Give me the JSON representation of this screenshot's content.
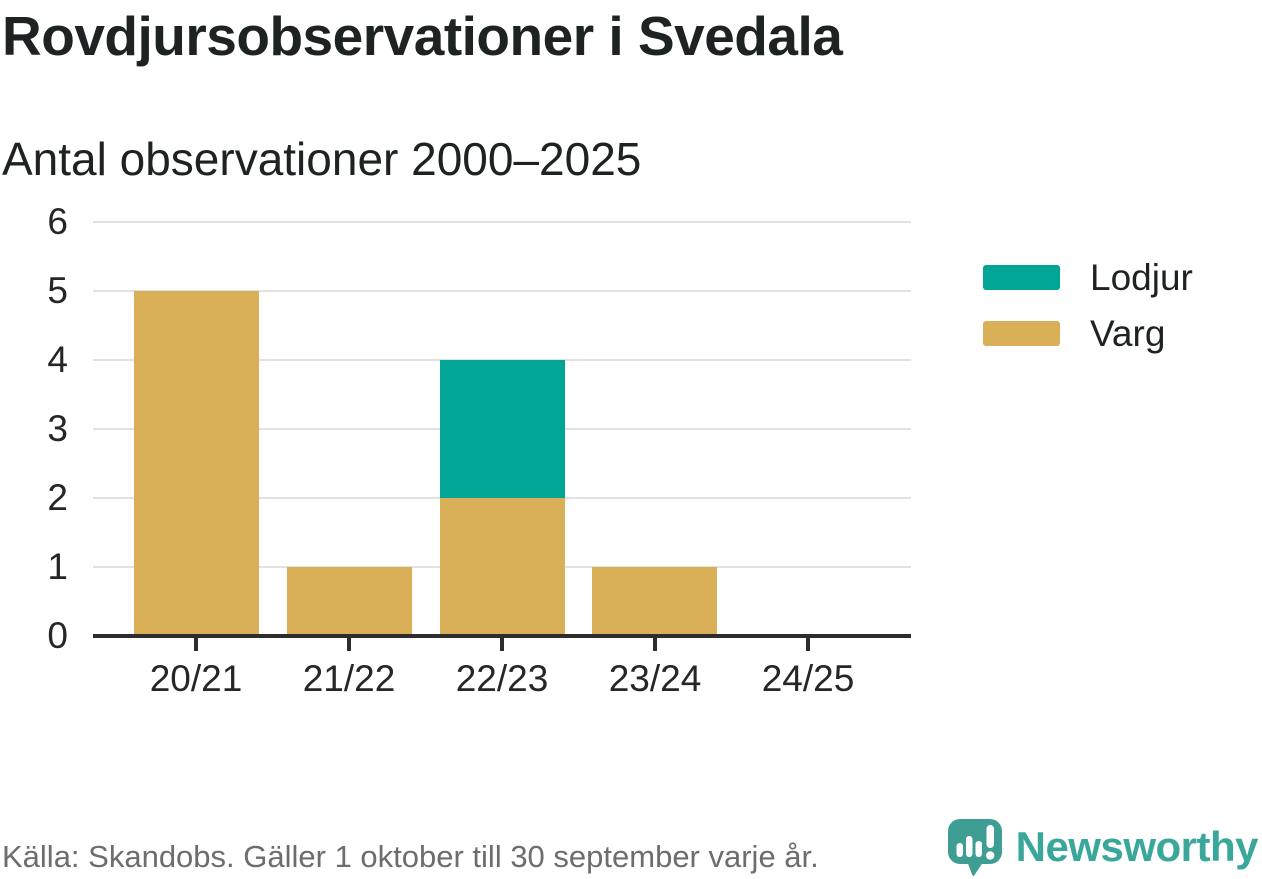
{
  "header": {
    "title": "Rovdjursobservationer i Svedala",
    "subtitle": "Antal observationer 2000–2025"
  },
  "chart_data": {
    "type": "bar",
    "stacked": true,
    "categories": [
      "20/21",
      "21/22",
      "22/23",
      "23/24",
      "24/25"
    ],
    "series": [
      {
        "name": "Lodjur",
        "color": "#00a596",
        "values": [
          0,
          0,
          2,
          0,
          0
        ]
      },
      {
        "name": "Varg",
        "color": "#d9b057",
        "values": [
          5,
          1,
          2,
          1,
          0
        ]
      }
    ],
    "totals": [
      5,
      1,
      4,
      1,
      0
    ],
    "title": "Rovdjursobservationer i Svedala",
    "subtitle": "Antal observationer 2000–2025",
    "xlabel": "",
    "ylabel": "",
    "ylim": [
      0,
      6
    ],
    "yticks": [
      0,
      1,
      2,
      3,
      4,
      5,
      6
    ],
    "grid": true,
    "legend_position": "right"
  },
  "footer": {
    "source": "Källa: Skandobs. Gäller 1 oktober till 30 september varje år.",
    "brand": "Newsworthy"
  },
  "colors": {
    "lodjur": "#00a596",
    "varg": "#d9b057",
    "gridline": "#e2e2e2",
    "axis": "#2d2d2d",
    "text": "#1e2222",
    "muted": "#6d6d6d",
    "brand_teal": "#3aa79b",
    "brand_icon": "#3e9e93",
    "background": "#ffffff"
  }
}
